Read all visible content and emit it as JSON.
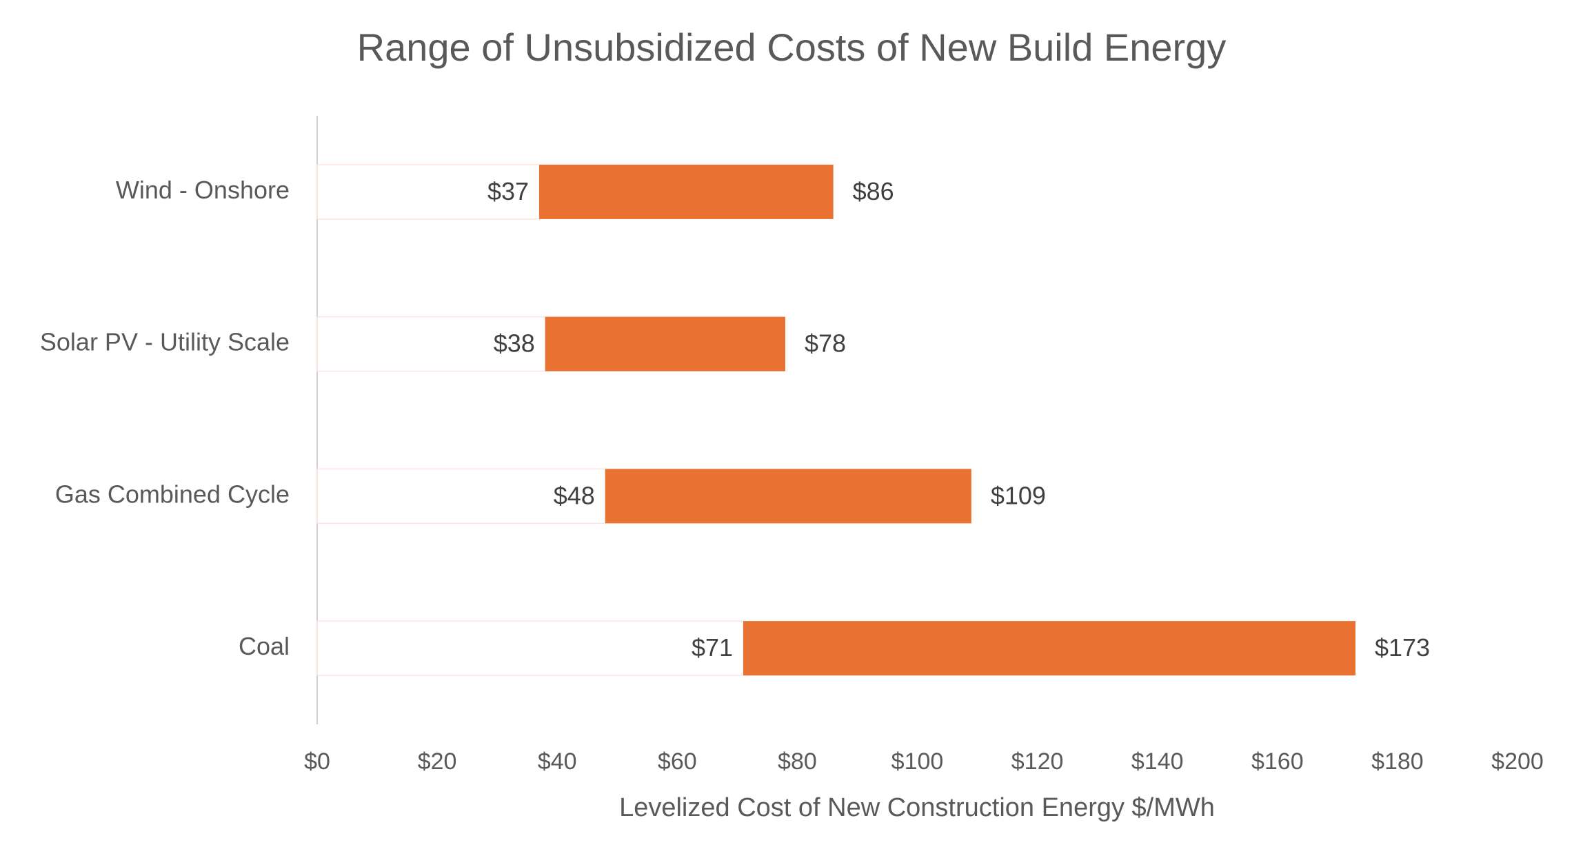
{
  "chart_data": {
    "type": "range-bar",
    "title": "Range of Unsubsidized Costs of New Build Energy",
    "x_label": "Levelized Cost of New Construction Energy $/MWh",
    "categories": [
      "Wind - Onshore",
      "Solar PV - Utility Scale",
      "Gas Combined Cycle",
      "Coal"
    ],
    "low": [
      37,
      38,
      48,
      71
    ],
    "low_labels": [
      "$37",
      "$38",
      "$48",
      "$71"
    ],
    "high": [
      86,
      78,
      109,
      173
    ],
    "high_labels": [
      "$86",
      "$78",
      "$109",
      "$173"
    ],
    "color": "#e97132",
    "xlim": [
      0,
      200
    ],
    "xticks": [
      {
        "value": 0,
        "label": "$0"
      },
      {
        "value": 20,
        "label": "$20"
      },
      {
        "value": 40,
        "label": "$40"
      },
      {
        "value": 60,
        "label": "$60"
      },
      {
        "value": 80,
        "label": "$80"
      },
      {
        "value": 100,
        "label": "$100"
      },
      {
        "value": 120,
        "label": "$120"
      },
      {
        "value": 140,
        "label": "$140"
      },
      {
        "value": 160,
        "label": "$160"
      },
      {
        "value": 180,
        "label": "$180"
      },
      {
        "value": 200,
        "label": "$200"
      }
    ]
  }
}
